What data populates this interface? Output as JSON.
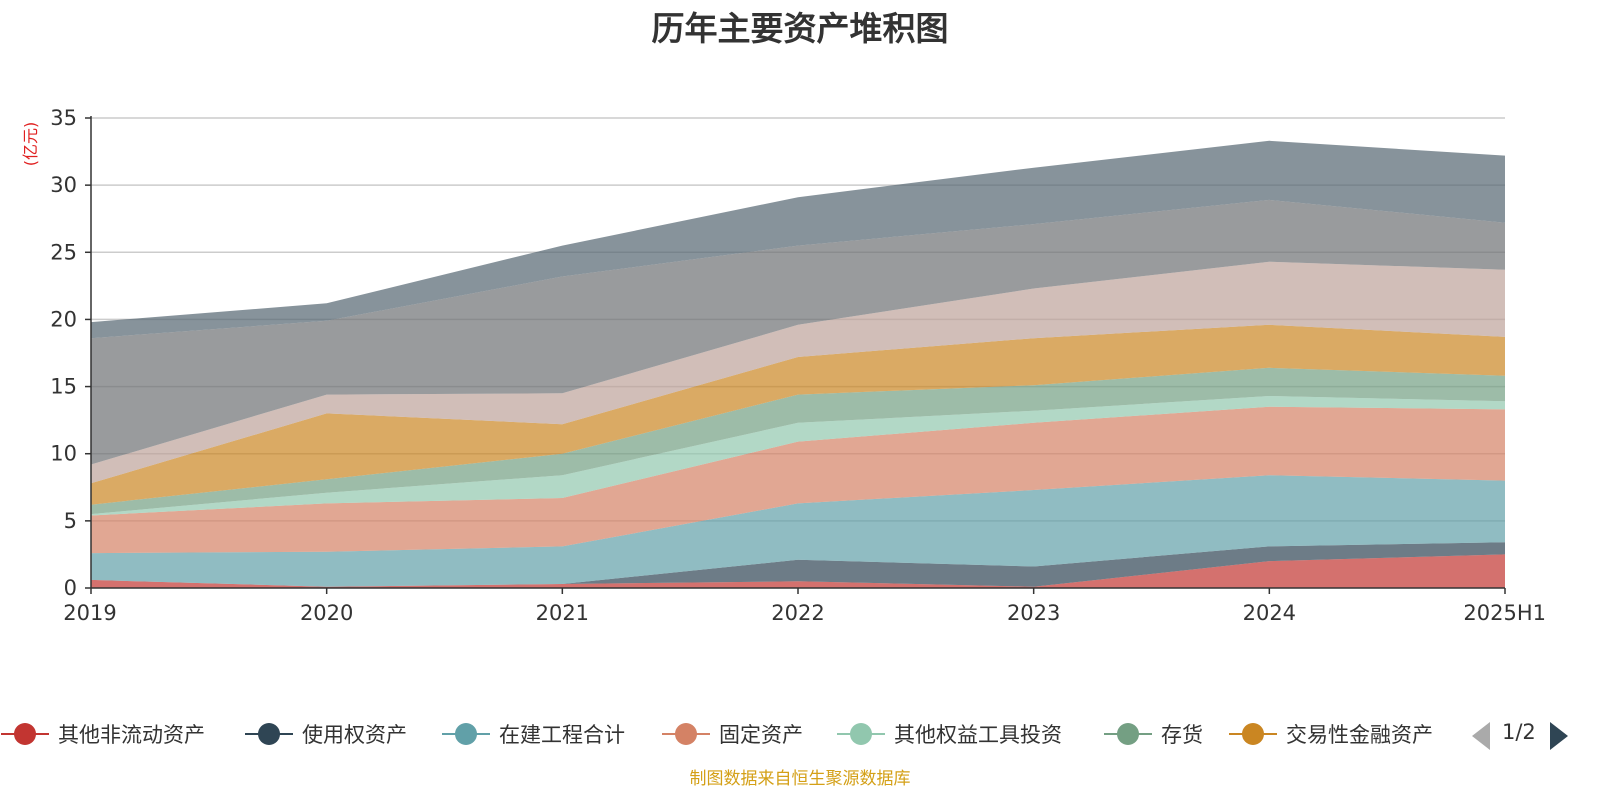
{
  "chart_data": {
    "type": "area",
    "title": "历年主要资产堆积图",
    "ylabel": "(亿元)",
    "xlabel": "",
    "categories": [
      "2019",
      "2020",
      "2021",
      "2022",
      "2023",
      "2024",
      "2025H1"
    ],
    "ylim": [
      0,
      35
    ],
    "yticks": [
      0,
      5,
      10,
      15,
      20,
      25,
      30,
      35
    ],
    "stacked": true,
    "grid": true,
    "legend_position": "bottom",
    "series": [
      {
        "name": "其他非流动资产",
        "color": "#c23531",
        "values": [
          0.6,
          0.1,
          0.3,
          0.5,
          0.1,
          2.0,
          2.5
        ]
      },
      {
        "name": "使用权资产",
        "color": "#2f4554",
        "values": [
          0.0,
          0.0,
          0.0,
          1.6,
          1.5,
          1.1,
          0.9
        ]
      },
      {
        "name": "在建工程合计",
        "color": "#61a0a8",
        "values": [
          2.0,
          2.6,
          2.8,
          4.2,
          5.7,
          5.3,
          4.6
        ]
      },
      {
        "name": "固定资产",
        "color": "#d48265",
        "values": [
          2.8,
          3.6,
          3.6,
          4.6,
          5.0,
          5.1,
          5.3
        ]
      },
      {
        "name": "其他权益工具投资",
        "color": "#91c7ae",
        "values": [
          0.1,
          0.8,
          1.7,
          1.4,
          0.9,
          0.8,
          0.6
        ]
      },
      {
        "name": "存货",
        "color": "#749f83",
        "values": [
          0.7,
          1.0,
          1.6,
          2.1,
          1.9,
          2.1,
          1.9
        ]
      },
      {
        "name": "交易性金融资产",
        "color": "#ca8622",
        "values": [
          1.6,
          4.9,
          2.2,
          2.8,
          3.5,
          3.2,
          2.9
        ]
      },
      {
        "values": [
          1.4,
          1.4,
          2.3,
          2.4,
          3.7,
          4.7,
          5.0
        ]
      },
      {
        "values": [
          9.4,
          5.5,
          8.7,
          5.9,
          4.8,
          4.6,
          3.5
        ]
      },
      {
        "values": [
          1.2,
          1.3,
          2.3,
          3.6,
          4.2,
          4.4,
          5.0
        ]
      }
    ]
  },
  "legend": {
    "items": [
      {
        "label": "其他非流动资产",
        "color": "#c23531"
      },
      {
        "label": "使用权资产",
        "color": "#2f4554"
      },
      {
        "label": "在建工程合计",
        "color": "#61a0a8"
      },
      {
        "label": "固定资产",
        "color": "#d48265"
      },
      {
        "label": "其他权益工具投资",
        "color": "#91c7ae"
      },
      {
        "label": "存货",
        "color": "#749f83"
      },
      {
        "label": "交易性金融资产",
        "color": "#ca8622"
      }
    ],
    "pager": "1/2"
  },
  "colors": {
    "hidden_series": [
      "#bda29a",
      "#6e7074",
      "#546570"
    ]
  },
  "source_note": "制图数据来自恒生聚源数据库"
}
